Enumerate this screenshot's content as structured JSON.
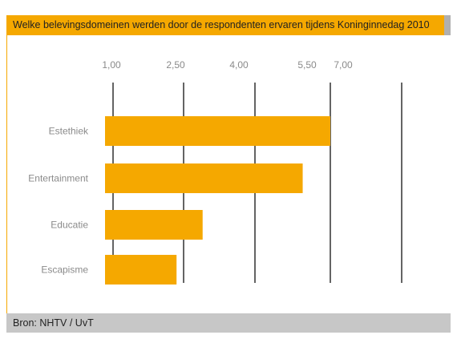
{
  "header": {
    "title": "Welke belevingsdomeinen werden door de respondenten ervaren tijdens Koninginnedag 2010"
  },
  "footer": {
    "source": "Bron: NHTV / UvT"
  },
  "colors": {
    "accent": "#f5a800",
    "bar": "#f5a800",
    "footer_bg": "#c7c7c7",
    "gridline": "#222222",
    "tick_label": "#8a8a8a"
  },
  "chart_data": {
    "type": "bar",
    "orientation": "horizontal",
    "title": "Welke belevingsdomeinen werden door de respondenten ervaren tijdens Koninginnedag 2010",
    "xlabel": "",
    "ylabel": "",
    "tick_labels": [
      "1,00",
      "2,50",
      "4,00",
      "5,50",
      "7,00"
    ],
    "ticks": [
      1.0,
      2.5,
      4.0,
      5.5,
      7.0
    ],
    "xlim": [
      1.0,
      7.0
    ],
    "categories": [
      "Estethiek",
      "Entertainment",
      "Educatie",
      "Escapisme"
    ],
    "values": [
      5.5,
      4.95,
      2.9,
      2.35
    ],
    "grid": true,
    "legend": "none"
  }
}
